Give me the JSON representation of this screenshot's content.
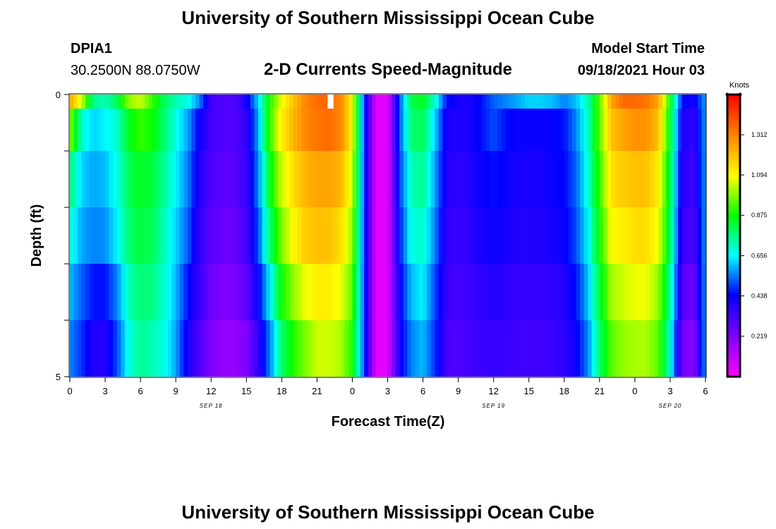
{
  "page": {
    "title": "University of Southern Mississippi Ocean Cube",
    "footer_title": "University of Southern Mississippi Ocean Cube"
  },
  "station": {
    "id": "DPIA1",
    "coords": "30.2500N  88.0750W"
  },
  "model": {
    "label": "Model Start Time",
    "start": "09/18/2021 Hour 03"
  },
  "chart_data": {
    "type": "heatmap",
    "title": "2-D Currents Speed-Magnitude",
    "xlabel": "Forecast Time(Z)",
    "ylabel": "Depth (ft)",
    "x_range_hours": [
      0,
      54
    ],
    "x_tick_values": [
      0,
      3,
      6,
      9,
      12,
      15,
      18,
      21,
      24,
      27,
      30,
      33,
      36,
      39,
      42,
      45,
      48,
      51,
      54
    ],
    "x_tick_labels": [
      "0",
      "3",
      "6",
      "9",
      "12",
      "15",
      "18",
      "21",
      "0",
      "3",
      "6",
      "9",
      "12",
      "15",
      "18",
      "21",
      "0",
      "3",
      "6"
    ],
    "date_labels": [
      {
        "label": "SEP 18",
        "hour": 12
      },
      {
        "label": "SEP 19",
        "hour": 36
      },
      {
        "label": "SEP 20",
        "hour": 51
      }
    ],
    "y_range_ft": [
      0,
      5
    ],
    "y_tick_labels": [
      "0",
      "5"
    ],
    "colorbar": {
      "units": "Knots",
      "min": 0,
      "max": 1.53,
      "tick_values": [
        0.219,
        0.438,
        0.656,
        0.875,
        1.094,
        1.312
      ],
      "tick_labels": [
        "0.219",
        "0.438",
        "0.656",
        "0.875",
        "1.094",
        "1.312"
      ]
    },
    "depth_layers_ft": [
      0,
      0.5,
      1.5,
      2.5,
      3.5,
      4.5
    ],
    "missing": [
      {
        "hour_start": 21.9,
        "hour_end": 22.4,
        "depth_layer": 0
      }
    ],
    "hours": [
      0,
      1,
      2,
      3,
      4,
      5,
      6,
      7,
      8,
      9,
      10,
      11,
      12,
      13,
      14,
      15,
      16,
      17,
      18,
      19,
      20,
      21,
      22,
      23,
      24,
      25,
      26,
      27,
      28,
      29,
      30,
      31,
      32,
      33,
      34,
      35,
      36,
      37,
      38,
      39,
      40,
      41,
      42,
      43,
      44,
      45,
      46,
      47,
      48,
      49,
      50,
      51,
      52,
      53,
      54
    ],
    "speed_knots": [
      [
        1.25,
        1.05,
        0.75,
        0.72,
        0.8,
        1.0,
        1.05,
        0.92,
        0.8,
        0.72,
        0.68,
        0.55,
        0.32,
        0.3,
        0.3,
        0.4,
        0.62,
        0.9,
        1.08,
        1.2,
        1.3,
        1.35,
        1.35,
        1.3,
        1.1,
        0.5,
        0.05,
        0.05,
        0.5,
        0.82,
        0.85,
        0.7,
        0.45,
        0.4,
        0.4,
        0.45,
        0.52,
        0.55,
        0.58,
        0.62,
        0.62,
        0.6,
        0.55,
        0.6,
        0.72,
        0.95,
        1.25,
        1.35,
        1.35,
        1.33,
        1.25,
        0.88,
        0.45,
        0.4,
        0.58
      ],
      [
        1.0,
        0.7,
        0.62,
        0.65,
        0.7,
        0.85,
        0.92,
        0.88,
        0.78,
        0.68,
        0.58,
        0.42,
        0.32,
        0.3,
        0.3,
        0.35,
        0.58,
        0.92,
        1.12,
        1.22,
        1.3,
        1.33,
        1.35,
        1.3,
        1.1,
        0.5,
        0.05,
        0.05,
        0.5,
        0.78,
        0.8,
        0.62,
        0.4,
        0.38,
        0.4,
        0.45,
        0.5,
        0.45,
        0.42,
        0.42,
        0.42,
        0.43,
        0.45,
        0.55,
        0.7,
        0.95,
        1.2,
        1.25,
        1.28,
        1.28,
        1.2,
        0.85,
        0.4,
        0.35,
        0.58
      ],
      [
        0.78,
        0.62,
        0.58,
        0.6,
        0.68,
        0.8,
        0.85,
        0.82,
        0.75,
        0.65,
        0.55,
        0.38,
        0.3,
        0.28,
        0.28,
        0.34,
        0.55,
        0.85,
        1.05,
        1.15,
        1.22,
        1.25,
        1.25,
        1.22,
        1.05,
        0.5,
        0.05,
        0.05,
        0.48,
        0.72,
        0.75,
        0.58,
        0.38,
        0.36,
        0.38,
        0.42,
        0.45,
        0.42,
        0.4,
        0.4,
        0.4,
        0.42,
        0.44,
        0.52,
        0.68,
        0.92,
        1.15,
        1.18,
        1.2,
        1.2,
        1.12,
        0.82,
        0.38,
        0.33,
        0.58
      ],
      [
        0.7,
        0.58,
        0.55,
        0.56,
        0.65,
        0.78,
        0.82,
        0.8,
        0.72,
        0.62,
        0.52,
        0.36,
        0.28,
        0.26,
        0.26,
        0.32,
        0.5,
        0.78,
        0.98,
        1.1,
        1.18,
        1.2,
        1.2,
        1.15,
        1.0,
        0.5,
        0.05,
        0.05,
        0.45,
        0.68,
        0.7,
        0.55,
        0.36,
        0.34,
        0.36,
        0.4,
        0.42,
        0.4,
        0.38,
        0.38,
        0.38,
        0.4,
        0.42,
        0.5,
        0.65,
        0.88,
        1.1,
        1.12,
        1.15,
        1.15,
        1.08,
        0.8,
        0.35,
        0.3,
        0.58
      ],
      [
        0.6,
        0.52,
        0.45,
        0.45,
        0.55,
        0.72,
        0.78,
        0.76,
        0.7,
        0.6,
        0.45,
        0.34,
        0.25,
        0.22,
        0.22,
        0.28,
        0.42,
        0.65,
        0.88,
        1.0,
        1.08,
        1.12,
        1.12,
        1.08,
        0.95,
        0.5,
        0.05,
        0.05,
        0.42,
        0.6,
        0.65,
        0.5,
        0.34,
        0.32,
        0.34,
        0.36,
        0.38,
        0.36,
        0.35,
        0.35,
        0.35,
        0.36,
        0.38,
        0.45,
        0.6,
        0.82,
        1.02,
        1.05,
        1.08,
        1.08,
        1.0,
        0.75,
        0.3,
        0.25,
        0.58
      ],
      [
        0.55,
        0.48,
        0.38,
        0.38,
        0.5,
        0.68,
        0.75,
        0.72,
        0.68,
        0.58,
        0.4,
        0.3,
        0.22,
        0.18,
        0.18,
        0.22,
        0.35,
        0.55,
        0.78,
        0.9,
        0.98,
        1.05,
        1.05,
        1.02,
        0.9,
        0.5,
        0.05,
        0.05,
        0.4,
        0.55,
        0.6,
        0.48,
        0.32,
        0.3,
        0.32,
        0.34,
        0.35,
        0.34,
        0.33,
        0.33,
        0.33,
        0.34,
        0.36,
        0.42,
        0.55,
        0.78,
        0.95,
        1.0,
        1.02,
        1.02,
        0.95,
        0.7,
        0.25,
        0.2,
        0.58
      ]
    ]
  }
}
